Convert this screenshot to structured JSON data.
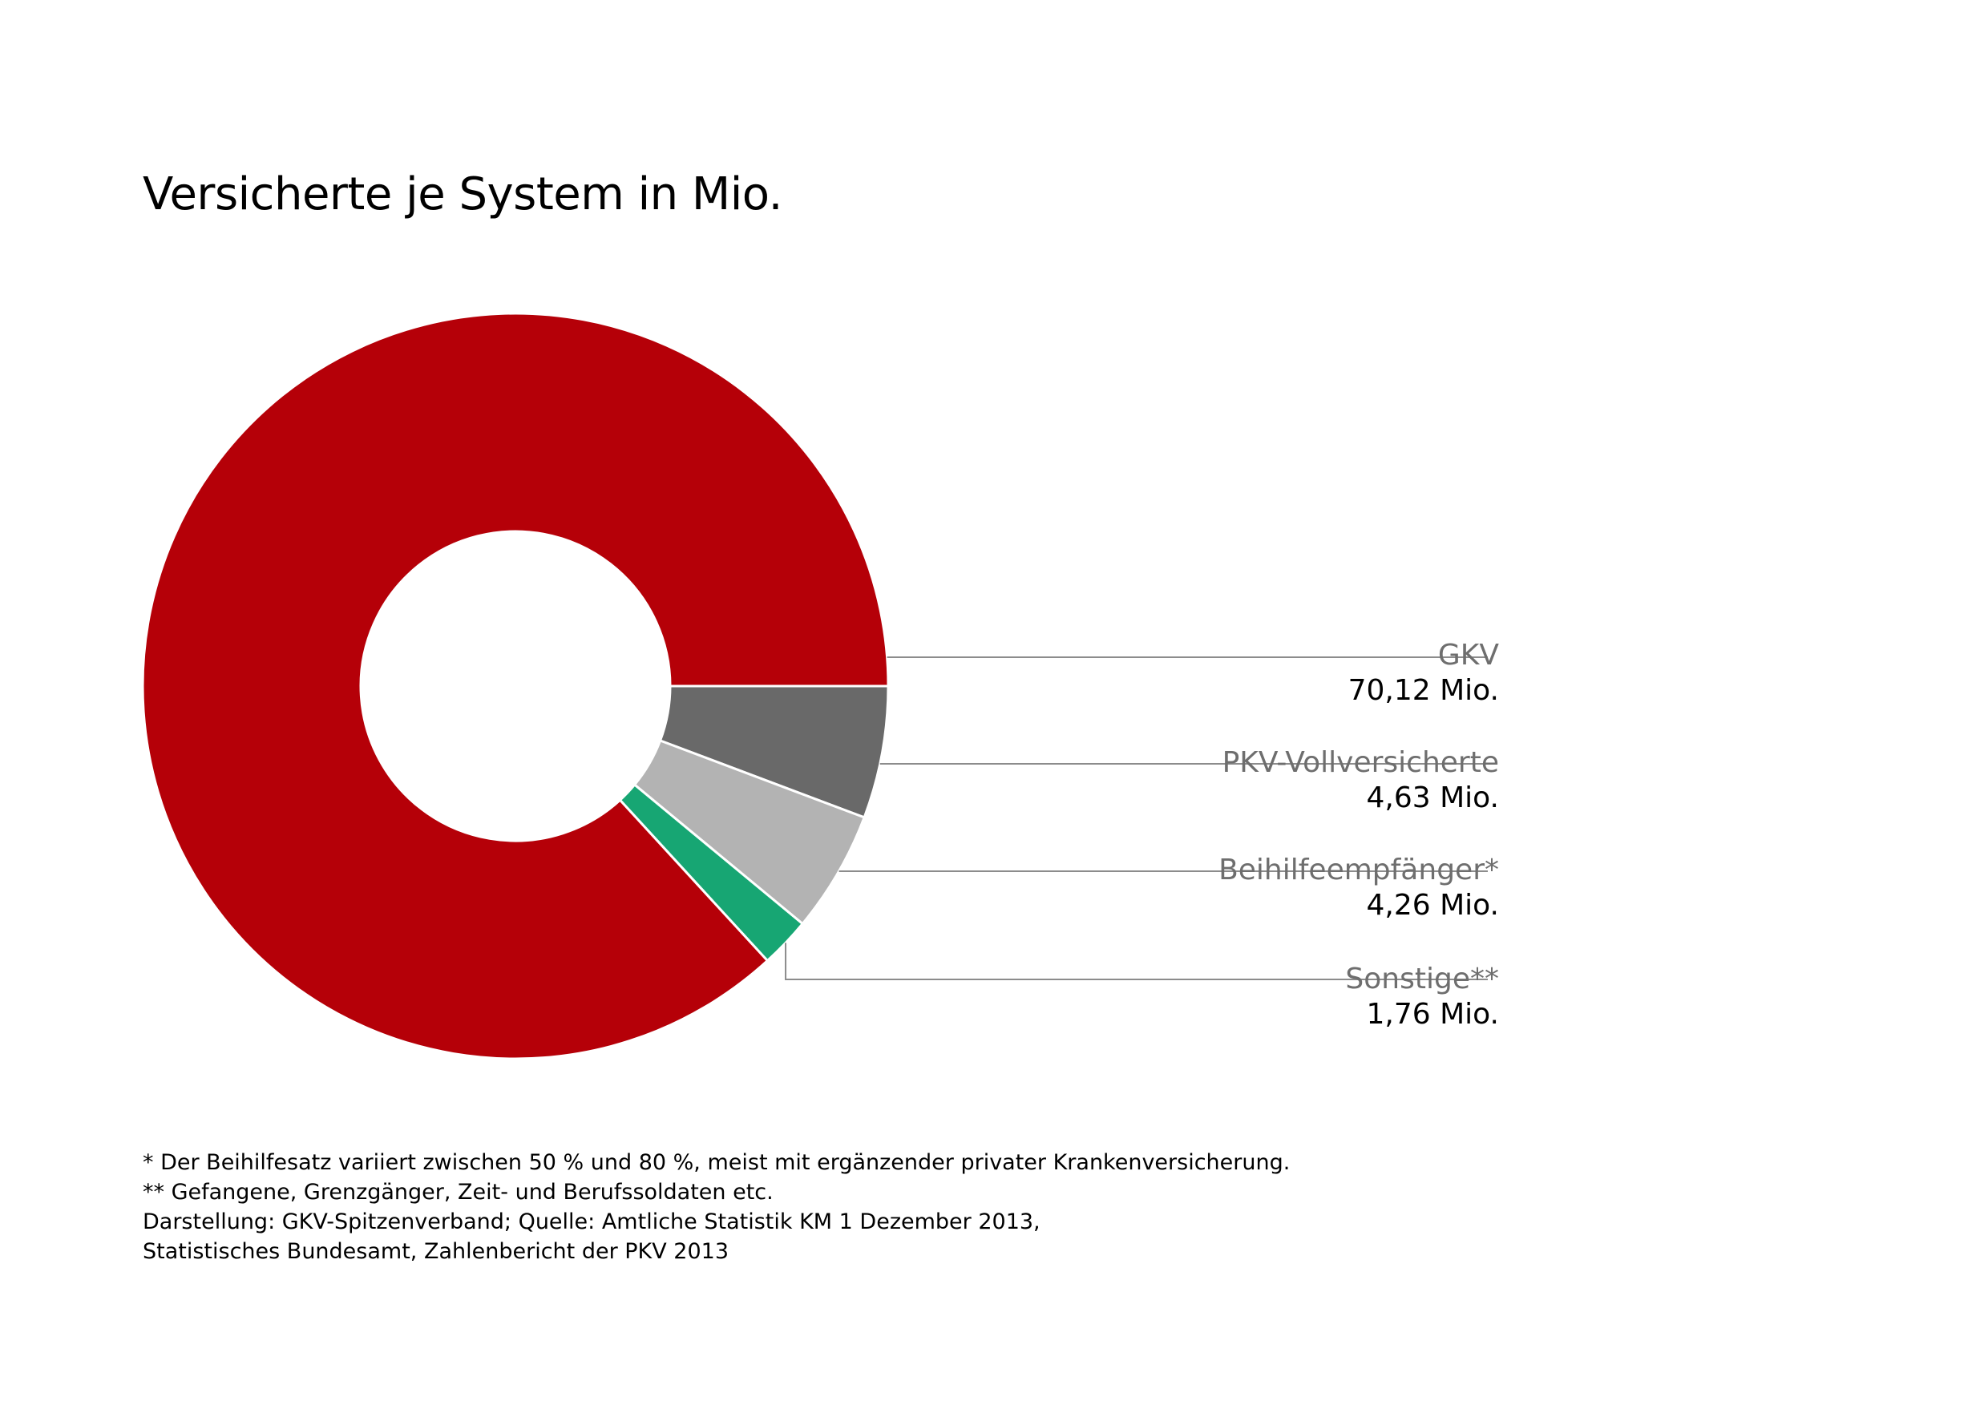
{
  "chart_data": {
    "type": "pie",
    "variant": "donut",
    "title": "Versicherte je System in Mio.",
    "unit": "Mio.",
    "slices": [
      {
        "name": "GKV",
        "value": 70.12,
        "value_label": "70,12 Mio.",
        "color": "#b50008"
      },
      {
        "name": "PKV-Vollversicherte",
        "value": 4.63,
        "value_label": "4,63 Mio.",
        "color": "#696969"
      },
      {
        "name": "Beihilfeempfänger*",
        "value": 4.26,
        "value_label": "4,26 Mio.",
        "color": "#b3b3b3"
      },
      {
        "name": "Sonstige**",
        "value": 1.76,
        "value_label": "1,76 Mio.",
        "color": "#17a673"
      }
    ],
    "leader_line_color": "#8c8c8c"
  },
  "footnotes": [
    "* Der Beihilfesatz variiert zwischen 50 % und 80 %, meist mit ergänzender privater Krankenversicherung.",
    "** Gefangene, Grenzgänger, Zeit- und Berufssoldaten etc.",
    "Darstellung: GKV-Spitzenverband; Quelle: Amtliche Statistik KM 1 Dezember 2013,",
    "Statistisches Bundesamt, Zahlenbericht der PKV 2013"
  ]
}
